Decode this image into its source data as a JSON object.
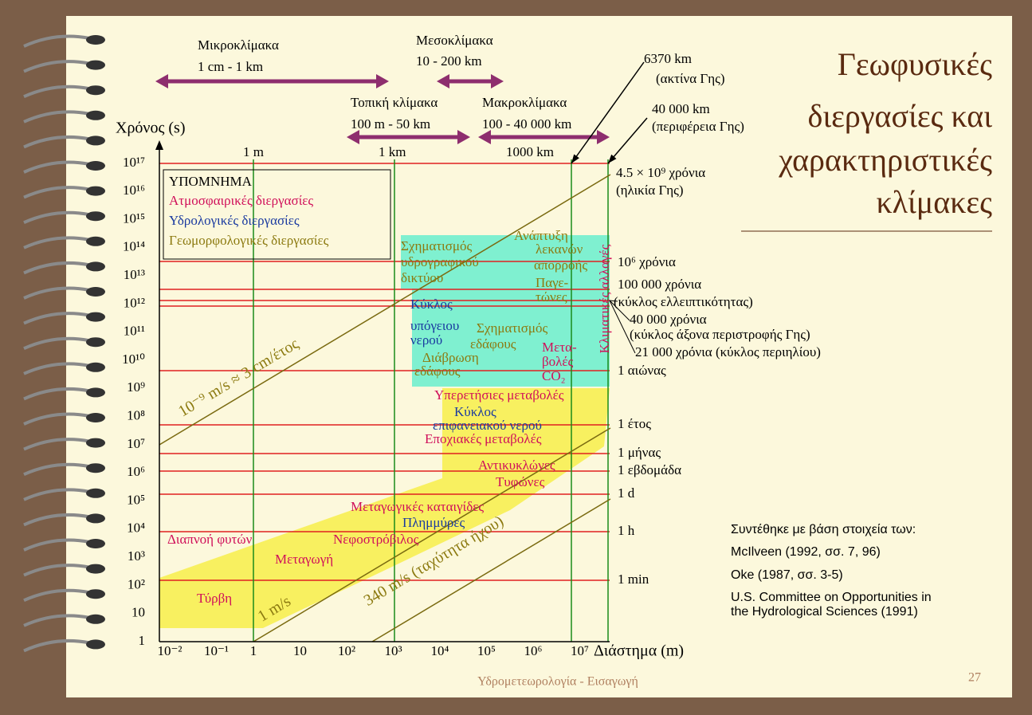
{
  "title_lines": [
    "Γεωφυσικές",
    "διεργασίες και",
    "χαρακτηριστικές",
    "κλίμακες"
  ],
  "scales": [
    {
      "name": "Μικροκλίμακα",
      "range": "1 cm - 1 km"
    },
    {
      "name": "Μεσοκλίμακα",
      "range": "10 - 200 km"
    },
    {
      "name": "Τοπική κλίμακα",
      "range": "100 m - 50 km"
    },
    {
      "name": "Μακροκλίμακα",
      "range": "100 - 40 000 km"
    }
  ],
  "length_marks": [
    "1 m",
    "1 km",
    "1000 km"
  ],
  "earth": [
    {
      "value": "6370 km",
      "note": "(ακτίνα Γης)"
    },
    {
      "value": "40 000 km",
      "note": "(περιφέρεια Γης)"
    }
  ],
  "y_axis": {
    "label": "Χρόνος (s)",
    "ticks": [
      "1",
      "10",
      "10²",
      "10³",
      "10⁴",
      "10⁵",
      "10⁶",
      "10⁷",
      "10⁸",
      "10⁹",
      "10¹⁰",
      "10¹¹",
      "10¹²",
      "10¹³",
      "10¹⁴",
      "10¹⁵",
      "10¹⁶",
      "10¹⁷"
    ]
  },
  "x_axis": {
    "label": "Διάστημα (m)",
    "ticks": [
      "10⁻²",
      "10⁻¹",
      "1",
      "10",
      "10²",
      "10³",
      "10⁴",
      "10⁵",
      "10⁶",
      "10⁷"
    ]
  },
  "legend": {
    "title": "ΥΠΟΜΝΗΜΑ",
    "items": [
      "Ατμοσφαιρικές διεργασίες",
      "Υδρολογικές διεργασίες",
      "Γεωμορφολογικές διεργασίες"
    ]
  },
  "time_marks": [
    [
      "4.5 × 10⁹ χρόνια",
      "(ηλικία Γης)"
    ],
    [
      "10⁶ χρόνια"
    ],
    [
      "100 000 χρόνια",
      "(κύκλος ελλειπτικότητας)"
    ],
    [
      "40 000 χρόνια",
      "(κύκλος άξονα περιστροφής Γης)"
    ],
    [
      "21 000 χρόνια (κύκλος περιηλίου)"
    ],
    [
      "1 αιώνας"
    ],
    [
      "1 έτος"
    ],
    [
      "1 μήνας"
    ],
    [
      "1 εβδομάδα"
    ],
    [
      "1 d"
    ],
    [
      "1 h"
    ],
    [
      "1 min"
    ]
  ],
  "speed_lines": [
    "10⁻⁹ m/s ≈ 3 cm/έτος",
    "1 m/s",
    "340 m/s (ταχύτητα ήχου)"
  ],
  "processes": {
    "atmospheric": [
      [
        "Υπερετήσιες μεταβολές"
      ],
      [
        "Εποχιακές μεταβολές"
      ],
      [
        "Αντικυκλώνες"
      ],
      [
        "Τυφώνες"
      ],
      [
        "Μεταγωγικές καταιγίδες"
      ],
      [
        "Νεφοστρόβιλος"
      ],
      [
        "Μεταγωγή"
      ],
      [
        "Τύρβη"
      ],
      [
        "Διαπνοή φυτών"
      ],
      [
        "Μετα-",
        "βολές",
        "CO₂"
      ],
      [
        "Κλιματικές αλλαγές"
      ]
    ],
    "hydrological": [
      [
        "Κύκλος",
        "υπόγειου",
        "νερού"
      ],
      [
        "Κύκλος",
        "επιφανειακού νερού"
      ],
      [
        "Πλημμύρες"
      ]
    ],
    "geomorphological": [
      [
        "Σχηματισμός",
        "υδρογραφικού",
        "δικτύου"
      ],
      [
        "Ανάπτυξη",
        "λεκανών",
        "απορροής"
      ],
      [
        "Παγε-",
        "τώνες"
      ],
      [
        "Σχηματισμός",
        "εδάφους"
      ],
      [
        "Διάβρωση",
        "εδάφους"
      ]
    ]
  },
  "sources": {
    "intro": "Συντέθηκε με βάση στοιχεία των:",
    "items": [
      "McIlveen (1992, σσ. 7, 96)",
      "Oke (1987, σσ. 3-5)",
      "U.S. Committee on Opportunities in",
      "the Hydrological Sciences (1991)"
    ]
  },
  "footer": {
    "course": "Υδρομετεωρολογία - Εισαγωγή",
    "page": "27"
  }
}
